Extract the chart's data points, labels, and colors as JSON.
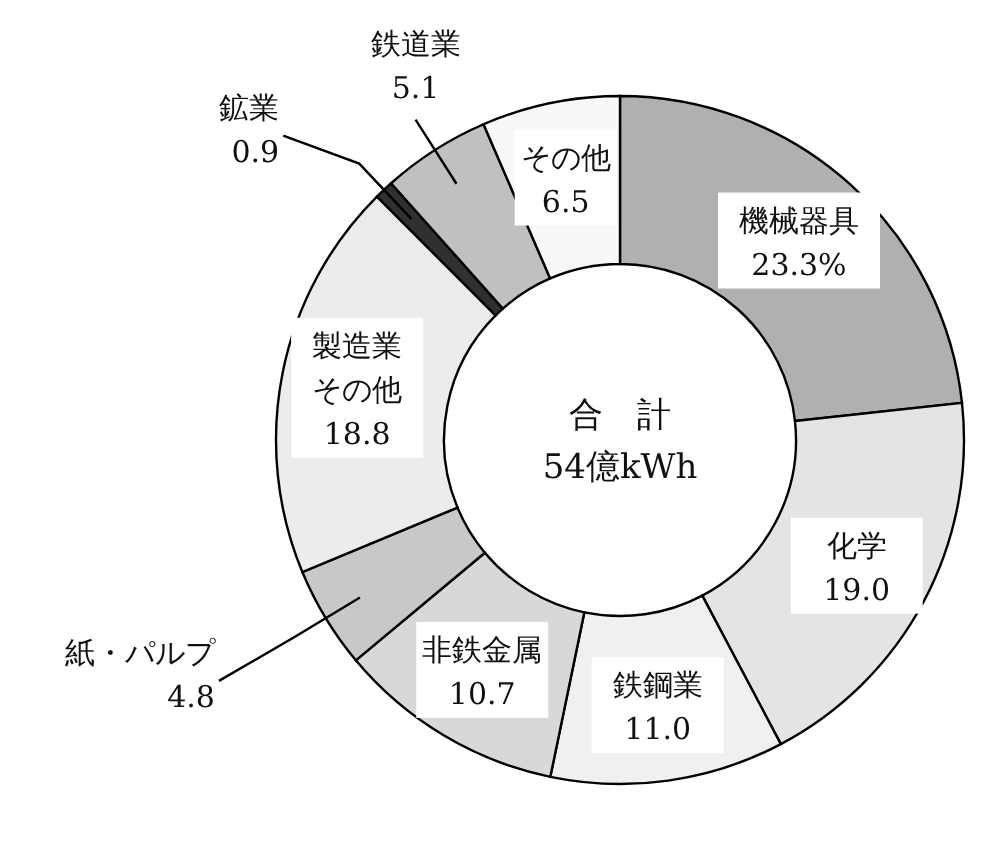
{
  "chart_data": {
    "type": "donut",
    "categories": [
      "機械器具",
      "化学",
      "鉄鋼業",
      "非鉄金属",
      "紙・パルプ",
      "製造業その他",
      "鉱業",
      "鉄道業",
      "その他"
    ],
    "values": [
      23.3,
      19.0,
      11.0,
      10.7,
      4.8,
      18.8,
      0.9,
      5.1,
      6.5
    ],
    "value_labels": [
      "23.3%",
      "19.0",
      "11.0",
      "10.7",
      "4.8",
      "18.8",
      "0.9",
      "5.1",
      "6.5"
    ],
    "colors": [
      "#b0b0b0",
      "#e4e4e4",
      "#f0f0f0",
      "#d8d8d8",
      "#c8c8c8",
      "#ececec",
      "#303030",
      "#c0c0c0",
      "#f8f8f8"
    ],
    "annotations": [
      "合　計",
      "54億kWh"
    ]
  }
}
